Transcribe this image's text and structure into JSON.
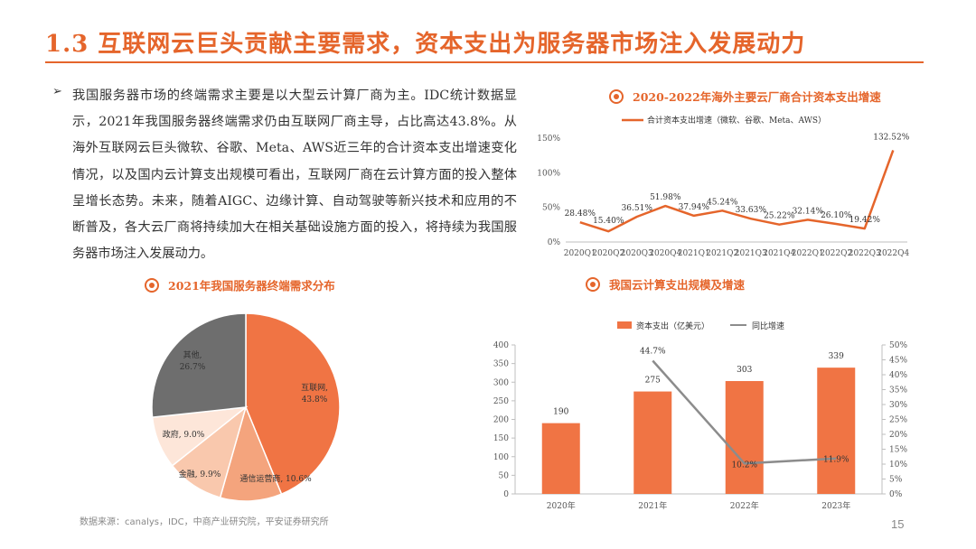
{
  "page": {
    "title": "1.3 互联网云巨头贡献主要需求，资本支出为服务器市场注入发展动力",
    "bullet_icon": "➢",
    "body": "我国服务器市场的终端需求主要是以大型云计算厂商为主。IDC统计数据显示，2021年我国服务器终端需求仍由互联网厂商主导，占比高达43.8%。从海外互联网云巨头微软、谷歌、Meta、AWS近三年的合计资本支出增速变化情况，以及国内云计算支出规模可看出，互联网厂商在云计算方面的投入整体呈增长态势。未来，随着AIGC、边缘计算、自动驾驶等新兴技术和应用的不断普及，各大云厂商将持续加大在相关基础设施方面的投入，将持续为我国服务器市场注入发展动力。",
    "source": "数据来源：canalys，IDC，中商产业研究院，平安证券研究所",
    "page_number": "15",
    "accent_color": "#e5652b"
  },
  "chart_data": [
    {
      "id": "overseas",
      "type": "line",
      "title": "2020-2022年海外主要云厂商合计资本支出增速",
      "categories": [
        "2020Q1",
        "2020Q2",
        "2020Q3",
        "2020Q4",
        "2021Q1",
        "2021Q2",
        "2021Q3",
        "2021Q4",
        "2022Q1",
        "2022Q2",
        "2022Q3",
        "2022Q4"
      ],
      "series": [
        {
          "name": "合计资本支出增速（微软、谷歌、Meta、AWS）",
          "values": [
            28.48,
            15.4,
            36.51,
            51.98,
            37.94,
            45.24,
            33.63,
            25.22,
            32.14,
            26.1,
            19.42,
            132.52
          ],
          "labels": [
            "28.48%",
            "15.40%",
            "36.51%",
            "51.98%",
            "37.94%",
            "45.24%",
            "33.63%",
            "25.22%",
            "32.14%",
            "26.10%",
            "19.42%",
            "132.52%"
          ],
          "color": "#e5652b"
        }
      ],
      "yticks": [
        "0%",
        "50%",
        "100%",
        "150%"
      ],
      "ylim": [
        0,
        150
      ],
      "legend": "top",
      "grid": false
    },
    {
      "id": "demand_pie",
      "type": "pie",
      "title": "2021年我国服务器终端需求分布",
      "slices": [
        {
          "name": "互联网",
          "value": 43.8,
          "label_name": "互联网,",
          "label_value": "43.8%",
          "color": "#f07444"
        },
        {
          "name": "通信运营商",
          "value": 10.6,
          "label_name": "通信运营商, 10.6%",
          "label_value": "",
          "color": "#f4a47d"
        },
        {
          "name": "金融",
          "value": 9.9,
          "label_name": "金融, 9.9%",
          "label_value": "",
          "color": "#f9c8ad"
        },
        {
          "name": "政府",
          "value": 9.0,
          "label_name": "政府, 9.0%",
          "label_value": "",
          "color": "#fde6d9"
        },
        {
          "name": "其他",
          "value": 26.7,
          "label_name": "其他,",
          "label_value": "26.7%",
          "color": "#6e6e6e"
        }
      ]
    },
    {
      "id": "domestic",
      "type": "bar",
      "title": "我国云计算支出规模及增速",
      "categories": [
        "2020年",
        "2021年",
        "2022年",
        "2023年"
      ],
      "series": [
        {
          "name": "资本支出（亿美元）",
          "type": "bar",
          "values": [
            190,
            275,
            303,
            339
          ],
          "labels": [
            "190",
            "275",
            "303",
            "339"
          ],
          "color": "#f07444"
        },
        {
          "name": "同比增速",
          "type": "line",
          "values": [
            null,
            44.7,
            10.2,
            11.9
          ],
          "labels": [
            "",
            "44.7%",
            "10.2%",
            "11.9%"
          ],
          "color": "#8c8c8c"
        }
      ],
      "y_left_ticks": [
        "0",
        "50",
        "100",
        "150",
        "200",
        "250",
        "300",
        "350",
        "400"
      ],
      "y_left_lim": [
        0,
        400
      ],
      "y_right_ticks": [
        "0%",
        "5%",
        "10%",
        "15%",
        "20%",
        "25%",
        "30%",
        "35%",
        "40%",
        "45%",
        "50%"
      ],
      "y_right_lim": [
        0,
        50
      ],
      "legend": "top",
      "grid": false
    }
  ]
}
